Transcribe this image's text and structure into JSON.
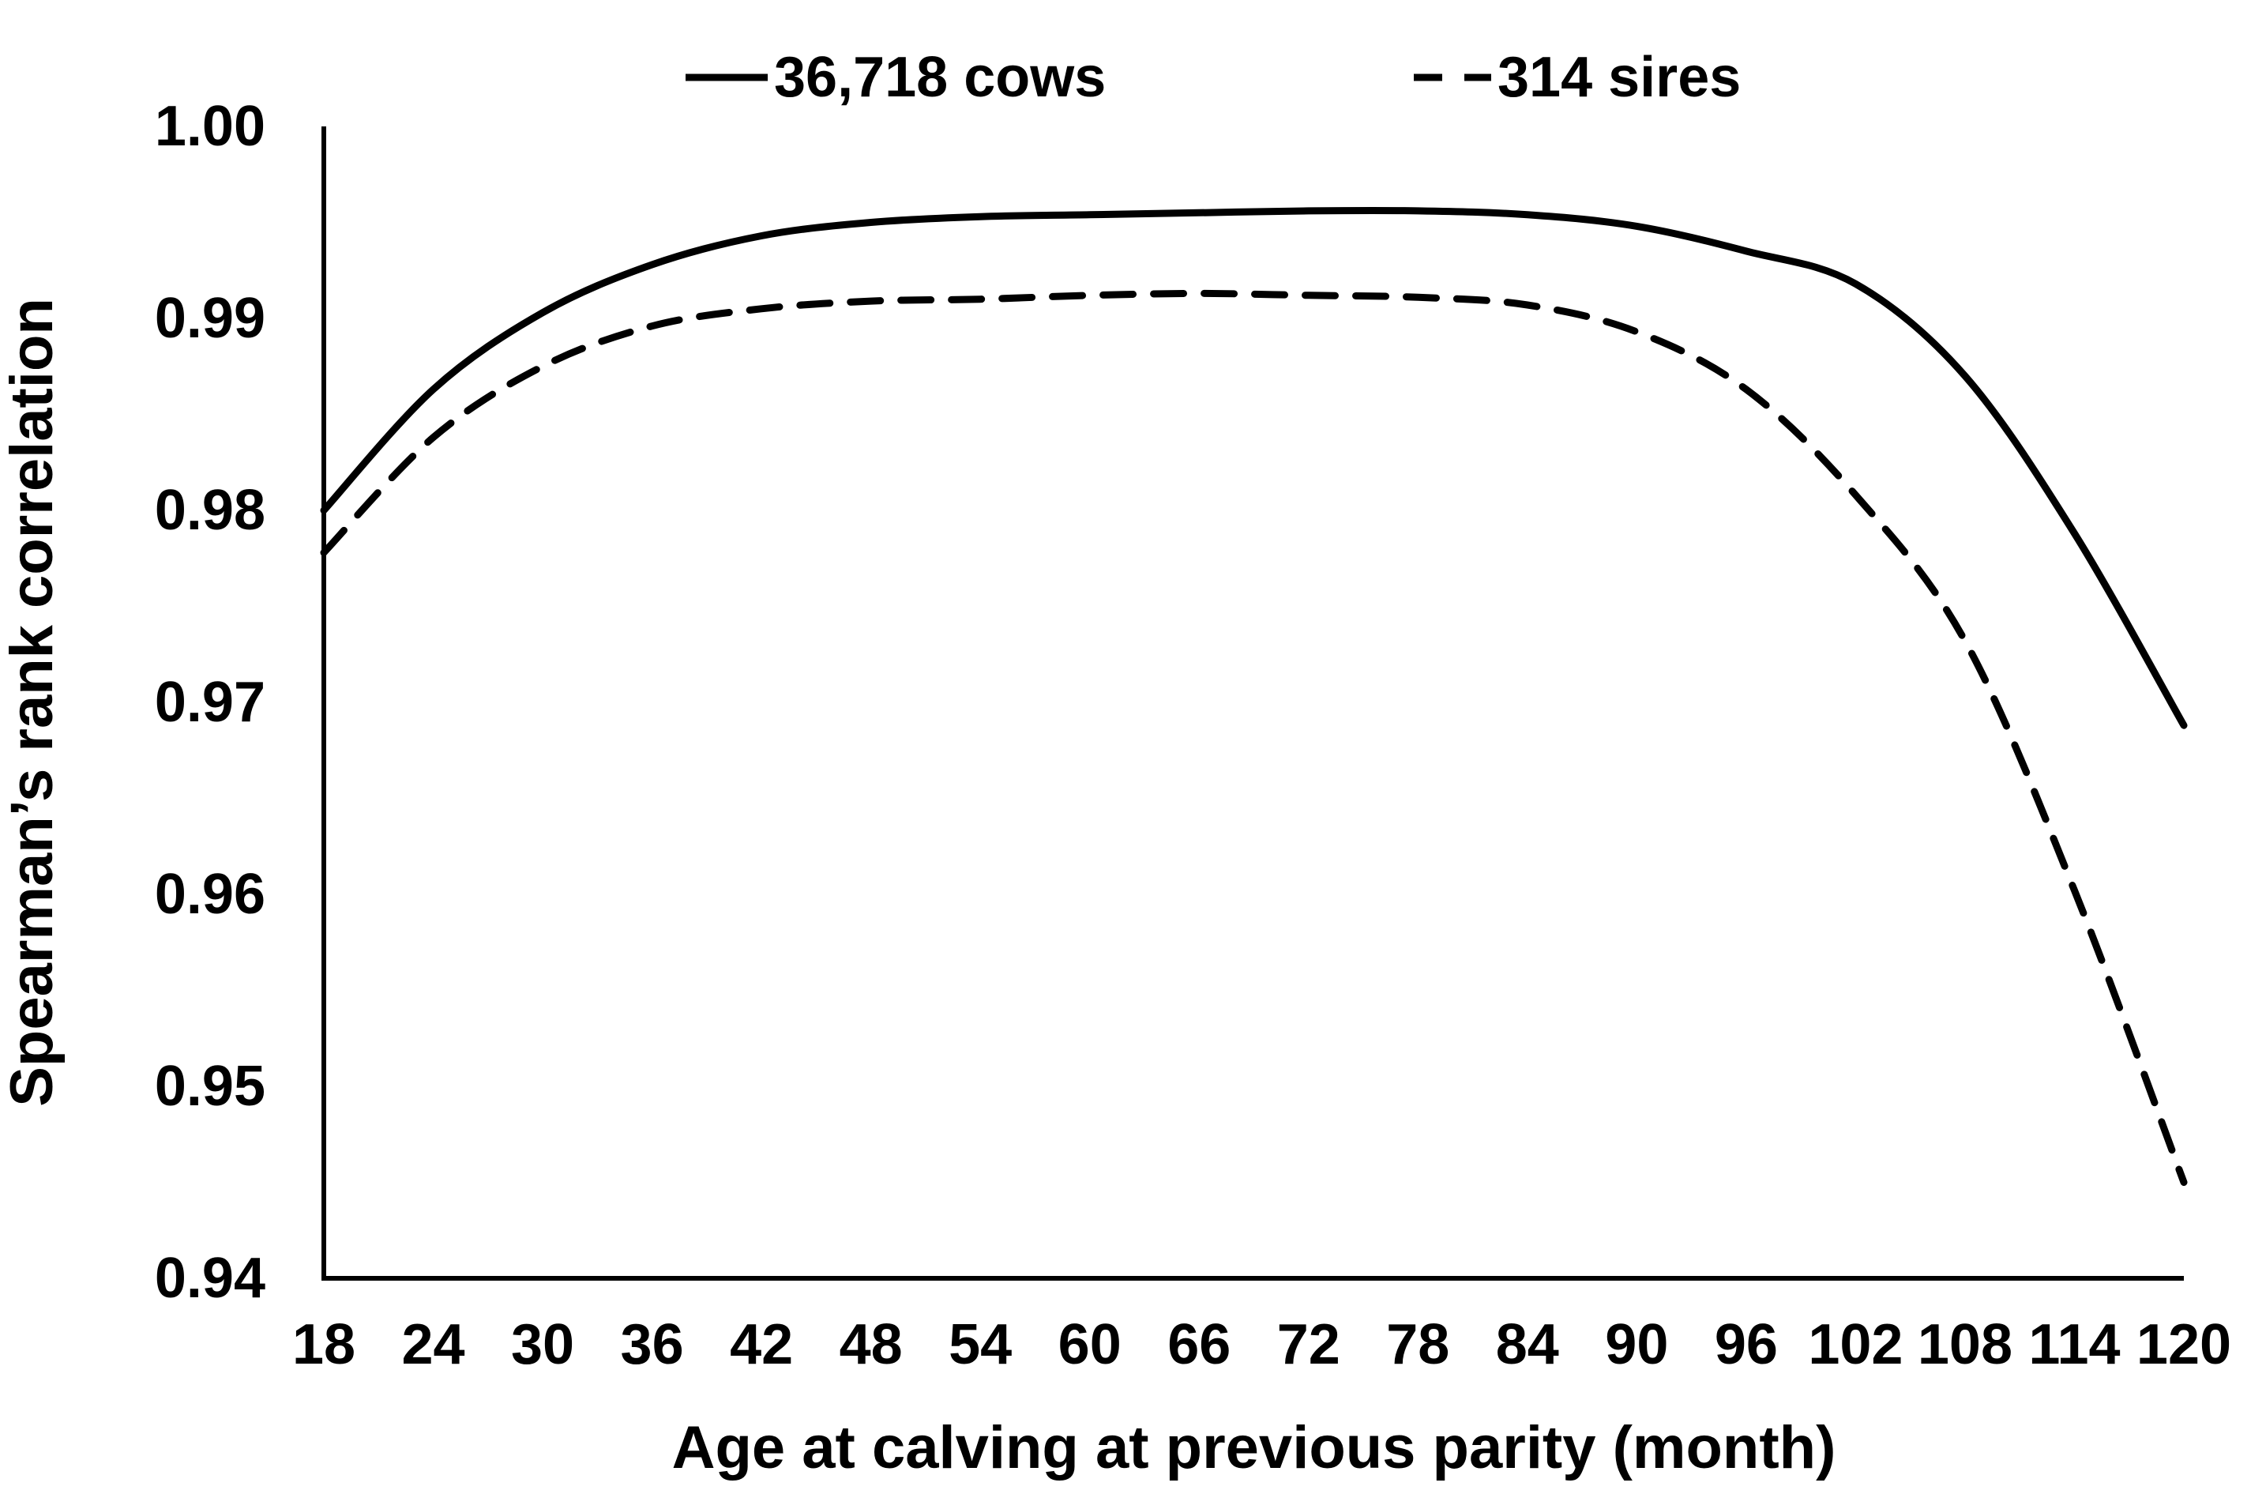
{
  "figure": {
    "background": "#ffffff",
    "line_color": "#000000",
    "text_color": "#000000"
  },
  "legend": {
    "position": "top",
    "items": [
      {
        "label": "36,718 cows",
        "style": "solid"
      },
      {
        "label": "314 sires",
        "style": "dashed"
      }
    ]
  },
  "axes": {
    "x_title": "Age at calving at previous parity (month)",
    "y_title": "Spearman’s rank correlation",
    "y_tick_labels": [
      "1.00",
      "0.99",
      "0.98",
      "0.97",
      "0.96",
      "0.95",
      "0.94"
    ]
  },
  "chart_data": {
    "type": "line",
    "title": "",
    "xlabel": "Age at calving at previous parity (month)",
    "ylabel": "Spearman’s rank correlation",
    "x": [
      18,
      24,
      30,
      36,
      42,
      48,
      54,
      60,
      66,
      72,
      78,
      84,
      90,
      96,
      102,
      108,
      114,
      120
    ],
    "series": [
      {
        "name": "36,718 cows",
        "line_style": "solid",
        "color": "#000000",
        "values": [
          0.98,
          0.9863,
          0.9903,
          0.9928,
          0.9943,
          0.995,
          0.9953,
          0.9954,
          0.9955,
          0.9956,
          0.9956,
          0.9954,
          0.9948,
          0.9935,
          0.9918,
          0.987,
          0.9788,
          0.9688
        ]
      },
      {
        "name": "314 sires",
        "line_style": "dashed",
        "color": "#000000",
        "values": [
          0.9778,
          0.9838,
          0.9875,
          0.9896,
          0.9905,
          0.9909,
          0.991,
          0.9912,
          0.9913,
          0.9912,
          0.9911,
          0.9907,
          0.9893,
          0.9863,
          0.9808,
          0.9732,
          0.9602,
          0.945
        ]
      }
    ],
    "xlim": [
      18,
      120
    ],
    "ylim": [
      0.94,
      1.0
    ],
    "x_tick_step": 6,
    "y_tick_step": 0.01,
    "grid": false,
    "legend_position": "top-center"
  }
}
